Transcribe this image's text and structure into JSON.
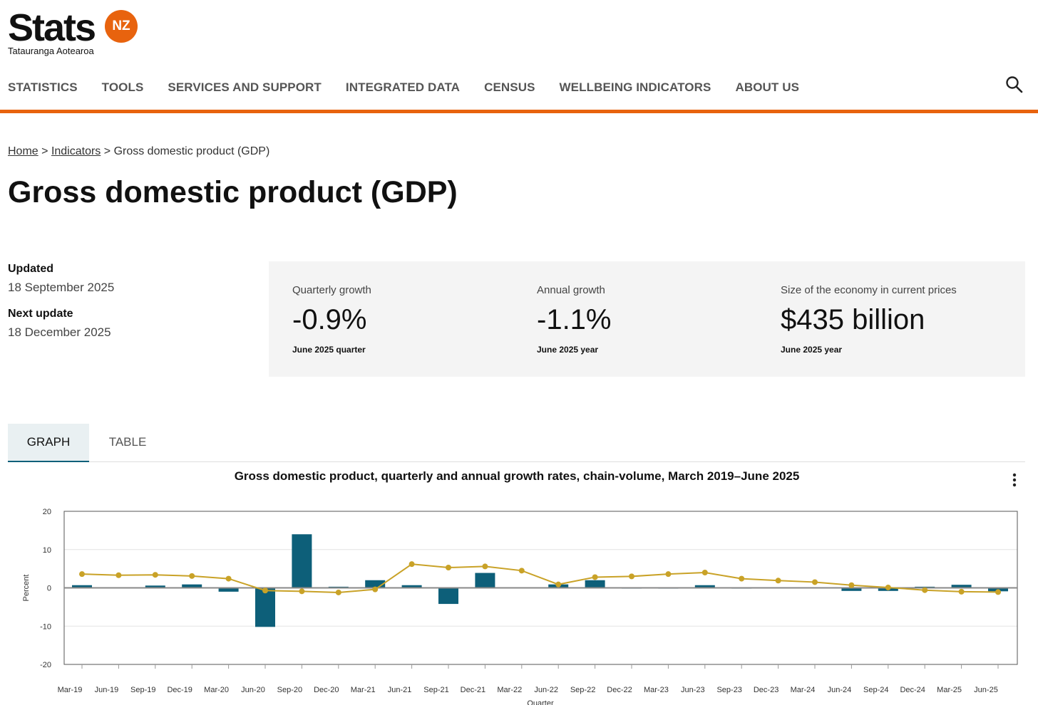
{
  "header": {
    "logo_word": "Stats",
    "logo_badge": "NZ",
    "logo_subtitle": "Tatauranga Aotearoa",
    "nav": [
      "STATISTICS",
      "TOOLS",
      "SERVICES AND SUPPORT",
      "INTEGRATED DATA",
      "CENSUS",
      "WELLBEING INDICATORS",
      "ABOUT US"
    ],
    "accent_color": "#e8630e"
  },
  "breadcrumb": {
    "home": "Home",
    "sep1": ">",
    "indicators": "Indicators",
    "sep2": ">",
    "current": "Gross domestic product (GDP)"
  },
  "page_title": "Gross domestic product (GDP)",
  "updates": {
    "updated_label": "Updated",
    "updated_value": "18 September 2025",
    "next_label": "Next update",
    "next_value": "18 December 2025"
  },
  "stats": [
    {
      "label": "Quarterly growth",
      "value": "-0.9%",
      "sub": "June 2025 quarter"
    },
    {
      "label": "Annual growth",
      "value": "-1.1%",
      "sub": "June 2025 year"
    },
    {
      "label": "Size of the economy in current prices",
      "value": "$435 billion",
      "sub": "June 2025 year"
    }
  ],
  "tabs": {
    "graph": "GRAPH",
    "table": "TABLE"
  },
  "chart_data": {
    "type": "bar",
    "title": "Gross domestic product, quarterly and annual growth rates, chain-volume, March 2019–June 2025",
    "xlabel": "Quarter",
    "ylabel": "Percent",
    "ylim": [
      -20,
      20
    ],
    "yticks": [
      20,
      10,
      0,
      -10,
      -20
    ],
    "categories": [
      "Mar-19",
      "Jun-19",
      "Sep-19",
      "Dec-19",
      "Mar-20",
      "Jun-20",
      "Sep-20",
      "Dec-20",
      "Mar-21",
      "Jun-21",
      "Sep-21",
      "Dec-21",
      "Mar-22",
      "Jun-22",
      "Sep-22",
      "Dec-22",
      "Mar-23",
      "Jun-23",
      "Sep-23",
      "Dec-23",
      "Mar-24",
      "Jun-24",
      "Sep-24",
      "Dec-24",
      "Mar-25",
      "Jun-25"
    ],
    "series": [
      {
        "name": "Quarterly growth",
        "type": "bar",
        "color": "#0d5f79",
        "values": [
          0.7,
          0.1,
          0.6,
          0.9,
          -1.0,
          -10.2,
          14.0,
          0.3,
          2.0,
          0.7,
          -4.2,
          3.9,
          -0.1,
          0.9,
          2.0,
          -0.2,
          -0.2,
          0.7,
          -0.2,
          0.1,
          0.0,
          -0.8,
          -0.8,
          0.3,
          0.8,
          -0.9
        ]
      },
      {
        "name": "Annual growth",
        "type": "line",
        "color": "#c9a227",
        "values": [
          3.6,
          3.3,
          3.4,
          3.1,
          2.4,
          -0.7,
          -0.9,
          -1.2,
          -0.4,
          6.2,
          5.3,
          5.6,
          4.5,
          0.9,
          2.8,
          3.0,
          3.6,
          4.0,
          2.4,
          1.9,
          1.5,
          0.7,
          0.1,
          -0.6,
          -1.0,
          -1.1
        ]
      }
    ]
  }
}
